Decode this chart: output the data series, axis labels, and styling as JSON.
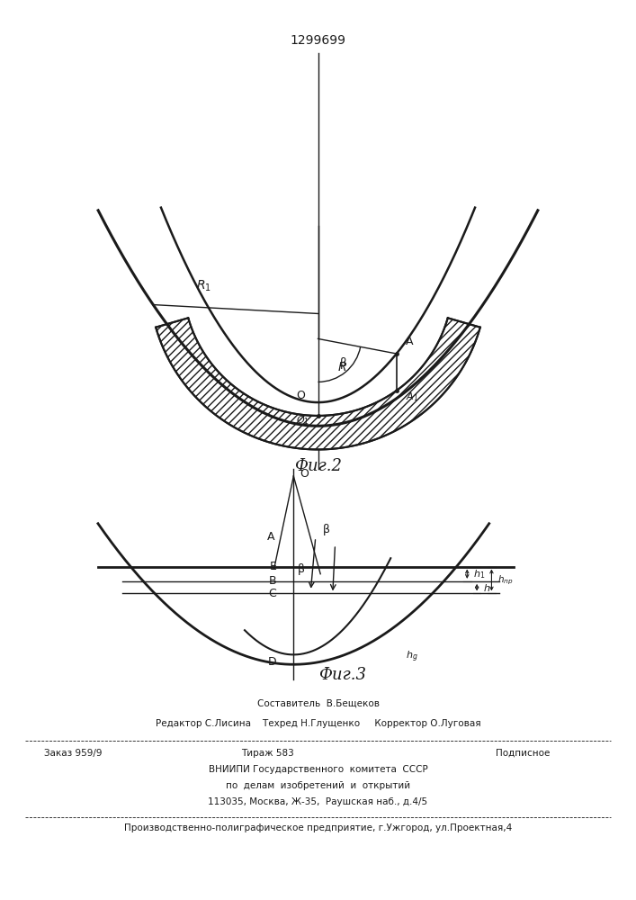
{
  "patent_number": "1299699",
  "fig2_label": "Фиг.2",
  "fig3_label": "Фиг.3",
  "line_color": "#1a1a1a",
  "footer_lines": [
    "Составитель  В.Бещеков",
    "Редактор С.Лисина    Техред Н.Глущенко     Корректор О.Луговая",
    "Заказ 959/9",
    "Тираж 583",
    "Подписное",
    "ВНИИПИ Государственного  комитета  СССР",
    "по  делам  изобретений  и  открытий",
    "113035, Москва, Ж-35,  Раушская наб., д.4/5",
    "Производственно-полиграфическое предприятие, г.Ужгород, ул.Проектная,4"
  ]
}
